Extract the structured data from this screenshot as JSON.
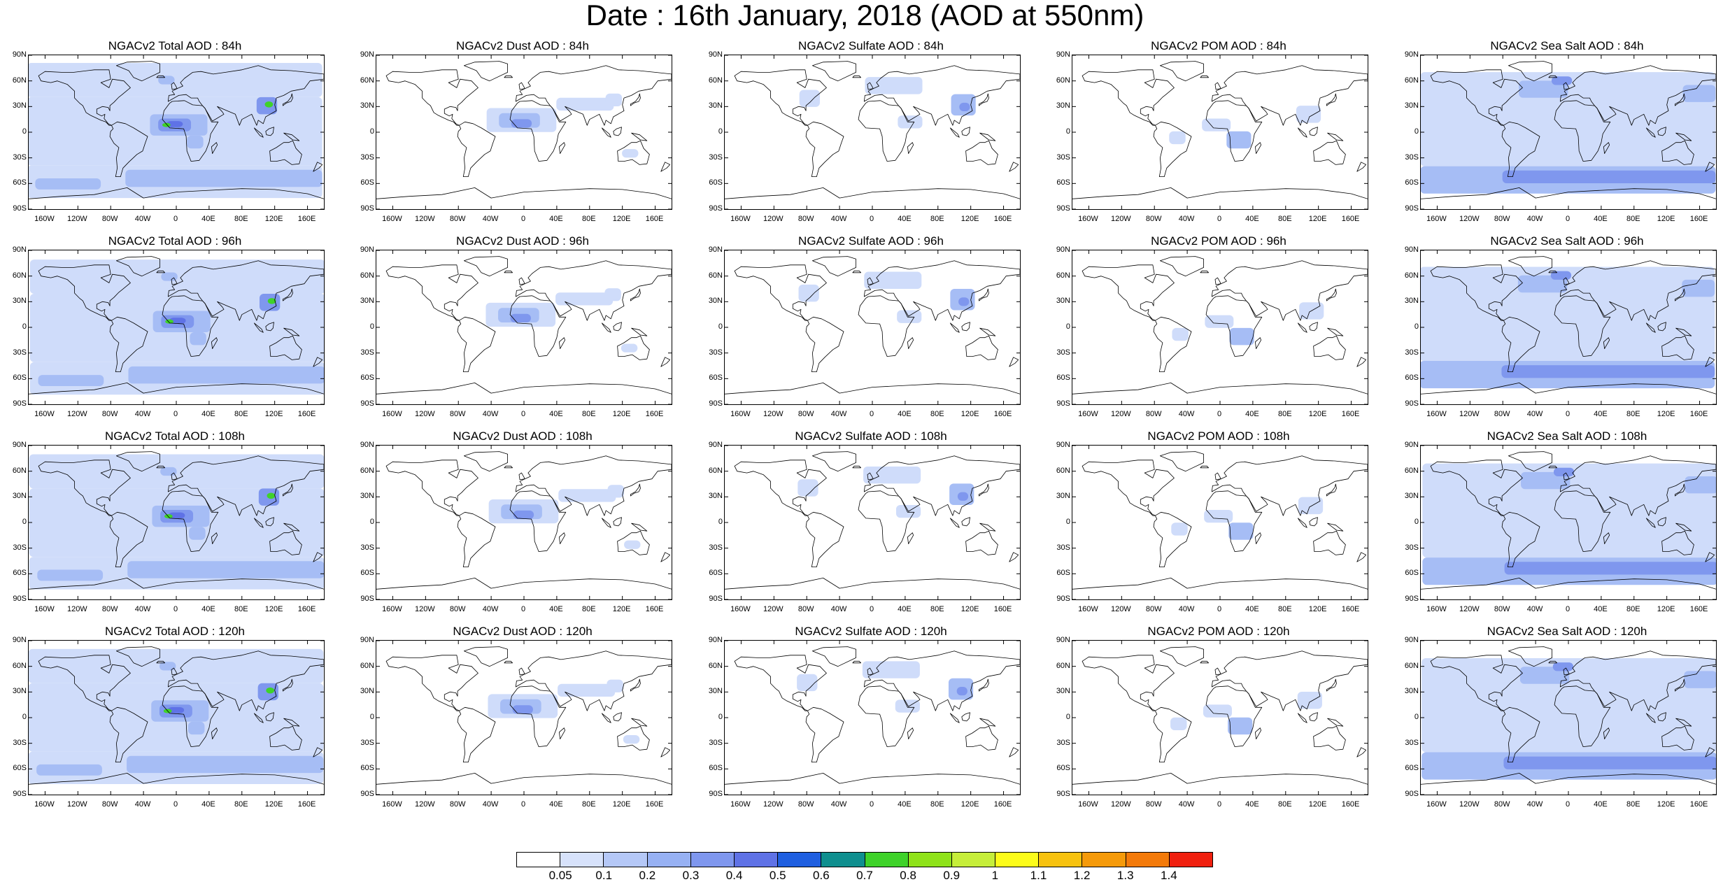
{
  "title": "Date : 16th January, 2018 (AOD at 550nm)",
  "panel_titles": [
    [
      "NGACv2 Total AOD : 84h",
      "NGACv2 Dust AOD : 84h",
      "NGACv2 Sulfate AOD : 84h",
      "NGACv2 POM AOD : 84h",
      "NGACv2 Sea Salt AOD : 84h"
    ],
    [
      "NGACv2 Total AOD : 96h",
      "NGACv2 Dust AOD : 96h",
      "NGACv2 Sulfate AOD : 96h",
      "NGACv2 POM AOD : 96h",
      "NGACv2 Sea Salt AOD : 96h"
    ],
    [
      "NGACv2 Total AOD : 108h",
      "NGACv2 Dust AOD : 108h",
      "NGACv2 Sulfate AOD : 108h",
      "NGACv2 POM AOD : 108h",
      "NGACv2 Sea Salt AOD : 108h"
    ],
    [
      "NGACv2 Total AOD : 120h",
      "NGACv2 Dust AOD : 120h",
      "NGACv2 Sulfate AOD : 120h",
      "NGACv2 POM AOD : 120h",
      "NGACv2 Sea Salt  AOD : 120h"
    ]
  ],
  "lat_labels": [
    "90N",
    "60N",
    "30N",
    "0",
    "30S",
    "60S",
    "90S"
  ],
  "lat_values": [
    90,
    60,
    30,
    0,
    -30,
    -60,
    -90
  ],
  "lon_labels": [
    "160W",
    "120W",
    "80W",
    "40W",
    "0",
    "40E",
    "80E",
    "120E",
    "160E"
  ],
  "lon_values": [
    -160,
    -120,
    -80,
    -40,
    0,
    40,
    80,
    120,
    160
  ],
  "colorbar": {
    "labels": [
      "0.05",
      "0.1",
      "0.2",
      "0.3",
      "0.4",
      "0.5",
      "0.6",
      "0.7",
      "0.8",
      "0.9",
      "1",
      "1.1",
      "1.2",
      "1.3",
      "1.4"
    ],
    "colors": [
      "#ffffff",
      "#d7e2fb",
      "#b5c8f7",
      "#97b1f3",
      "#7f97ee",
      "#5f72e6",
      "#1f5fe0",
      "#0f8f8f",
      "#3fd22a",
      "#8fe21a",
      "#c6ee3a",
      "#fcfc1a",
      "#f7c20f",
      "#f59a0a",
      "#f37a0a",
      "#f0200f"
    ]
  },
  "aerosol_colors": {
    "light": "#cfdcfa",
    "medium": "#a6bdf5",
    "strong": "#7f97ee",
    "peak": "#5f72e6",
    "hotspot": "#3fd22a"
  }
}
